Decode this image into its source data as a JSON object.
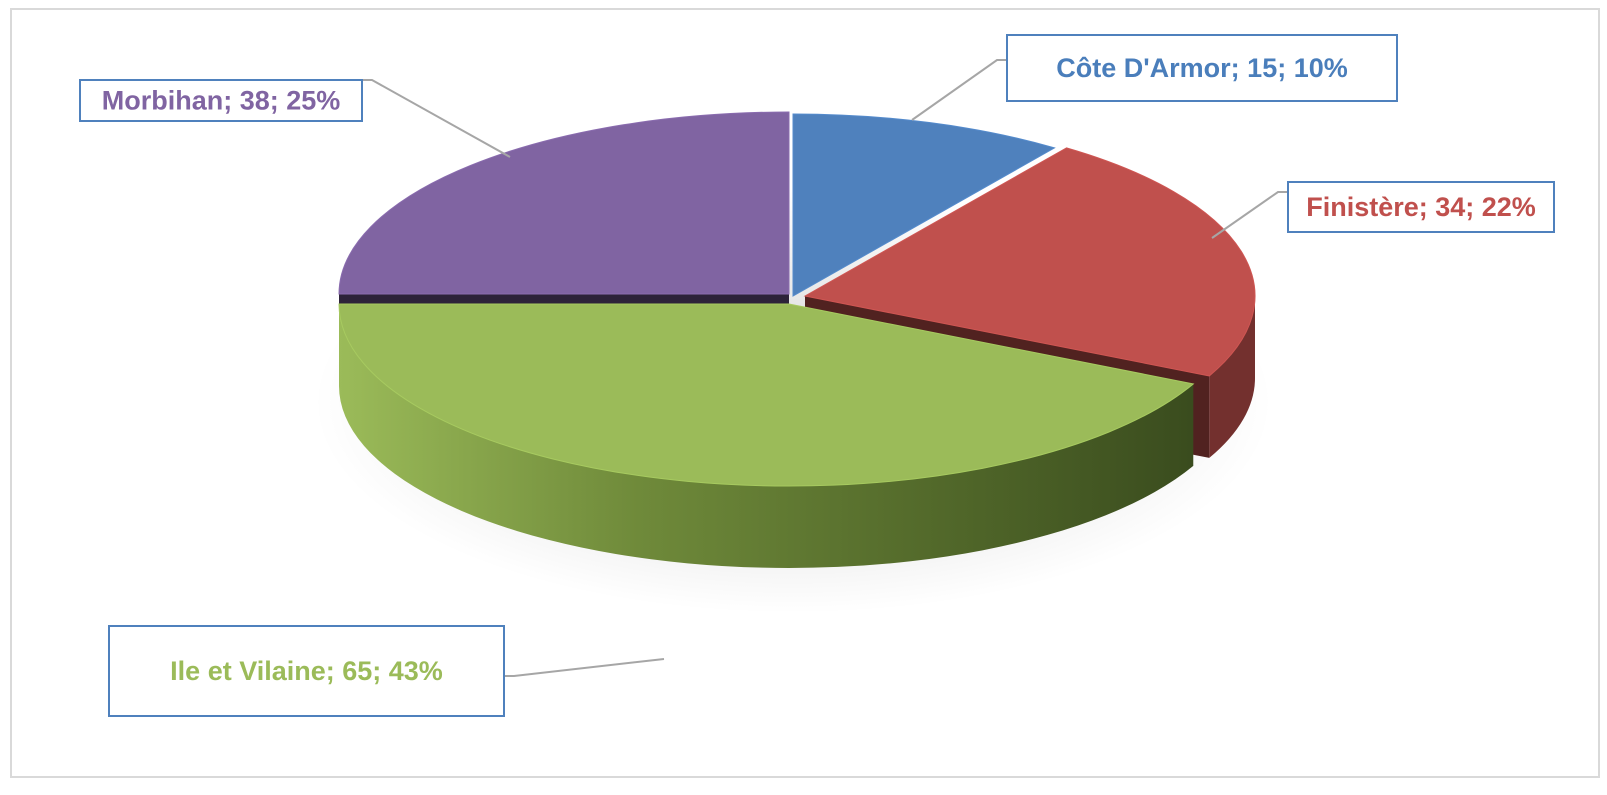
{
  "chart_data": {
    "type": "pie",
    "style": "3d",
    "slices": [
      {
        "label": "Côte D'Armor; 15; 10%",
        "name": "Côte D'Armor",
        "value": 15,
        "percent": 10,
        "color": "#4f81bd",
        "label_color": "#4a7ebb"
      },
      {
        "label": "Finistère; 34; 22%",
        "name": "Finistère",
        "value": 34,
        "percent": 22,
        "color": "#c0504d",
        "label_color": "#c0504d"
      },
      {
        "label": "Ile et Vilaine; 65; 43%",
        "name": "Ile et Vilaine",
        "value": 65,
        "percent": 43,
        "color": "#9bbb59",
        "label_color": "#9bbb59"
      },
      {
        "label": "Morbihan; 38; 25%",
        "name": "Morbihan",
        "value": 38,
        "percent": 25,
        "color": "#8064a2",
        "label_color": "#8064a2"
      }
    ],
    "title": "",
    "legend": "none",
    "label_border_color": "#4f81bd"
  }
}
